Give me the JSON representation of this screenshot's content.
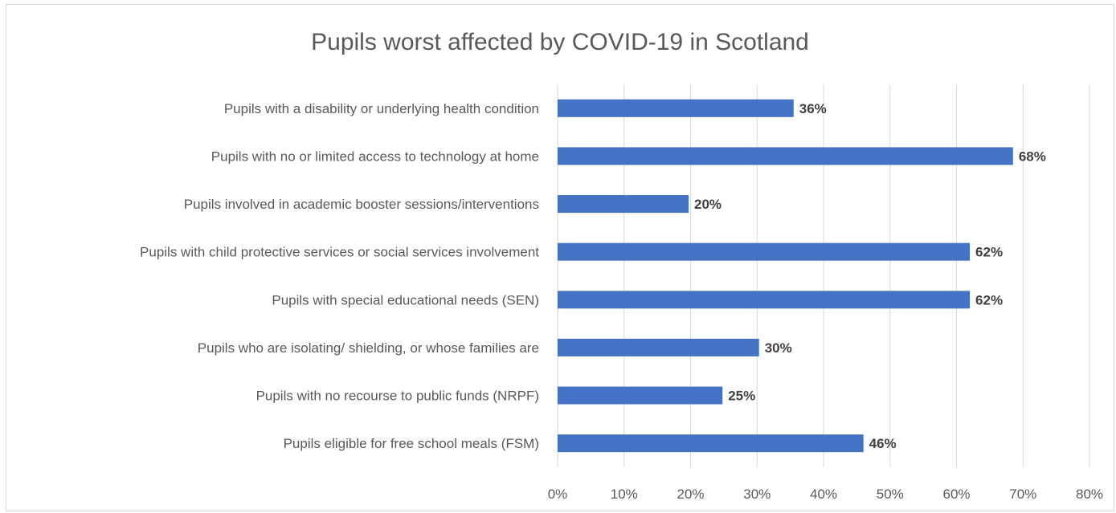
{
  "chart_data": {
    "type": "bar",
    "orientation": "horizontal",
    "title": "Pupils worst affected by COVID-19 in Scotland",
    "xlabel": "",
    "ylabel": "",
    "xlim": [
      0,
      80
    ],
    "x_tick_step": 10,
    "x_tick_labels": [
      "0%",
      "10%",
      "20%",
      "30%",
      "40%",
      "50%",
      "60%",
      "70%",
      "80%"
    ],
    "grid": "vertical",
    "legend": "none",
    "bar_color": "#4472c4",
    "categories": [
      "Pupils with a disability or underlying health condition",
      "Pupils with no or limited access to technology at home",
      "Pupils involved in academic booster sessions/interventions",
      "Pupils with child protective services or social services involvement",
      "Pupils with special educational needs (SEN)",
      "Pupils who are isolating/ shielding, or whose families are",
      "Pupils with no recourse to public funds (NRPF)",
      "Pupils eligible for free school meals (FSM)"
    ],
    "values": [
      35.5,
      68.5,
      19.7,
      62,
      62,
      30.3,
      24.8,
      46
    ],
    "data_labels": [
      "36%",
      "68%",
      "20%",
      "62%",
      "62%",
      "30%",
      "25%",
      "46%"
    ]
  }
}
